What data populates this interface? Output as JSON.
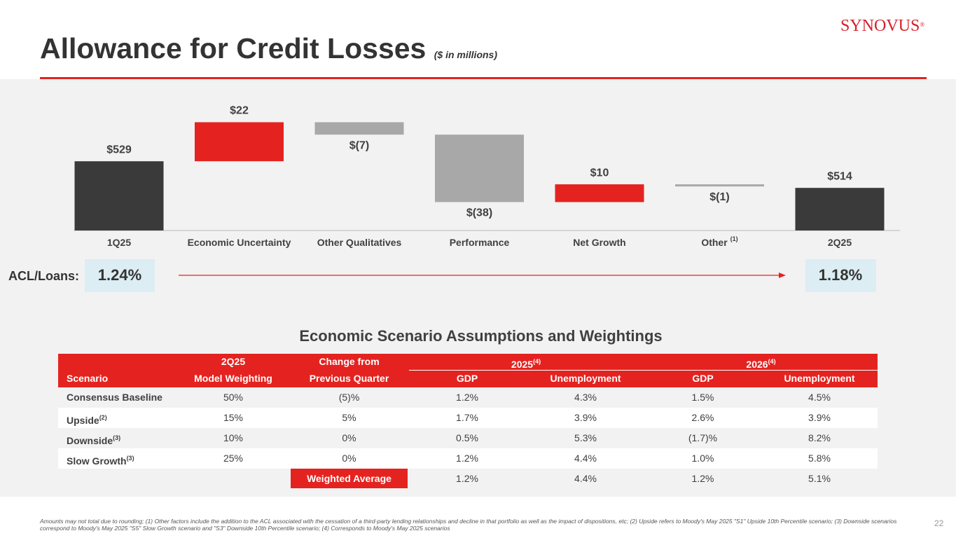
{
  "header": {
    "title": "Allowance for Credit Losses",
    "subtitle": "($ in millions)",
    "logo": "SYNOVUS",
    "logo_mark": "®"
  },
  "chart_data": {
    "type": "waterfall",
    "categories": [
      "1Q25",
      "Economic Uncertainty",
      "Other Qualitatives",
      "Performance",
      "Net Growth",
      "Other",
      "2Q25"
    ],
    "category_notes": [
      null,
      null,
      null,
      null,
      null,
      "(1)",
      null
    ],
    "values": [
      529,
      22,
      -7,
      -38,
      10,
      -1,
      514
    ],
    "value_labels": [
      "$529",
      "$22",
      "$(7)",
      "$(38)",
      "$10",
      "$(1)",
      "$514"
    ],
    "totals": [
      true,
      false,
      false,
      false,
      false,
      false,
      true
    ],
    "colors": {
      "total": "#3a3a3a",
      "increase": "#e42320",
      "decrease": "#a8a8a8"
    },
    "ylim": [
      490,
      565
    ]
  },
  "acl": {
    "label": "ACL/Loans:",
    "start": "1.24%",
    "end": "1.18%"
  },
  "table": {
    "title": "Economic Scenario Assumptions and Weightings",
    "header_top": {
      "model": "2Q25",
      "change": "Change from",
      "y2025": "2025",
      "y2025_note": "(4)",
      "y2026": "2026",
      "y2026_note": "(4)"
    },
    "header_bottom": [
      "Scenario",
      "Model Weighting",
      "Previous Quarter",
      "GDP",
      "Unemployment",
      "GDP",
      "Unemployment"
    ],
    "rows": [
      {
        "name": "Consensus Baseline",
        "note": null,
        "cells": [
          "50%",
          "(5)%",
          "1.2%",
          "4.3%",
          "1.5%",
          "4.5%"
        ]
      },
      {
        "name": "Upside",
        "note": "(2)",
        "cells": [
          "15%",
          "5%",
          "1.7%",
          "3.9%",
          "2.6%",
          "3.9%"
        ]
      },
      {
        "name": "Downside",
        "note": "(3)",
        "cells": [
          "10%",
          "0%",
          "0.5%",
          "5.3%",
          "(1.7)%",
          "8.2%"
        ]
      },
      {
        "name": "Slow Growth",
        "note": "(3)",
        "cells": [
          "25%",
          "0%",
          "1.2%",
          "4.4%",
          "1.0%",
          "5.8%"
        ]
      }
    ],
    "weighted": {
      "label": "Weighted Average",
      "cells": [
        "1.2%",
        "4.4%",
        "1.2%",
        "5.1%"
      ]
    }
  },
  "footer": {
    "note": "Amounts may not total due to rounding; (1) Other factors include the addition to the ACL associated with the cessation of a third-party lending relationships and decline in that portfolio as well as the impact of dispositions, etc; (2)  Upside refers to Moody's May 2025 \"S1\" Upside 10th Percentile scenario; (3) Downside scenarios correspond to Moody's May 2025 \"S5\" Slow Growth scenario and \"S3\" Downside 10th Percentile scenario; (4) Corresponds to Moody's May 2025 scenarios",
    "page": "22"
  }
}
